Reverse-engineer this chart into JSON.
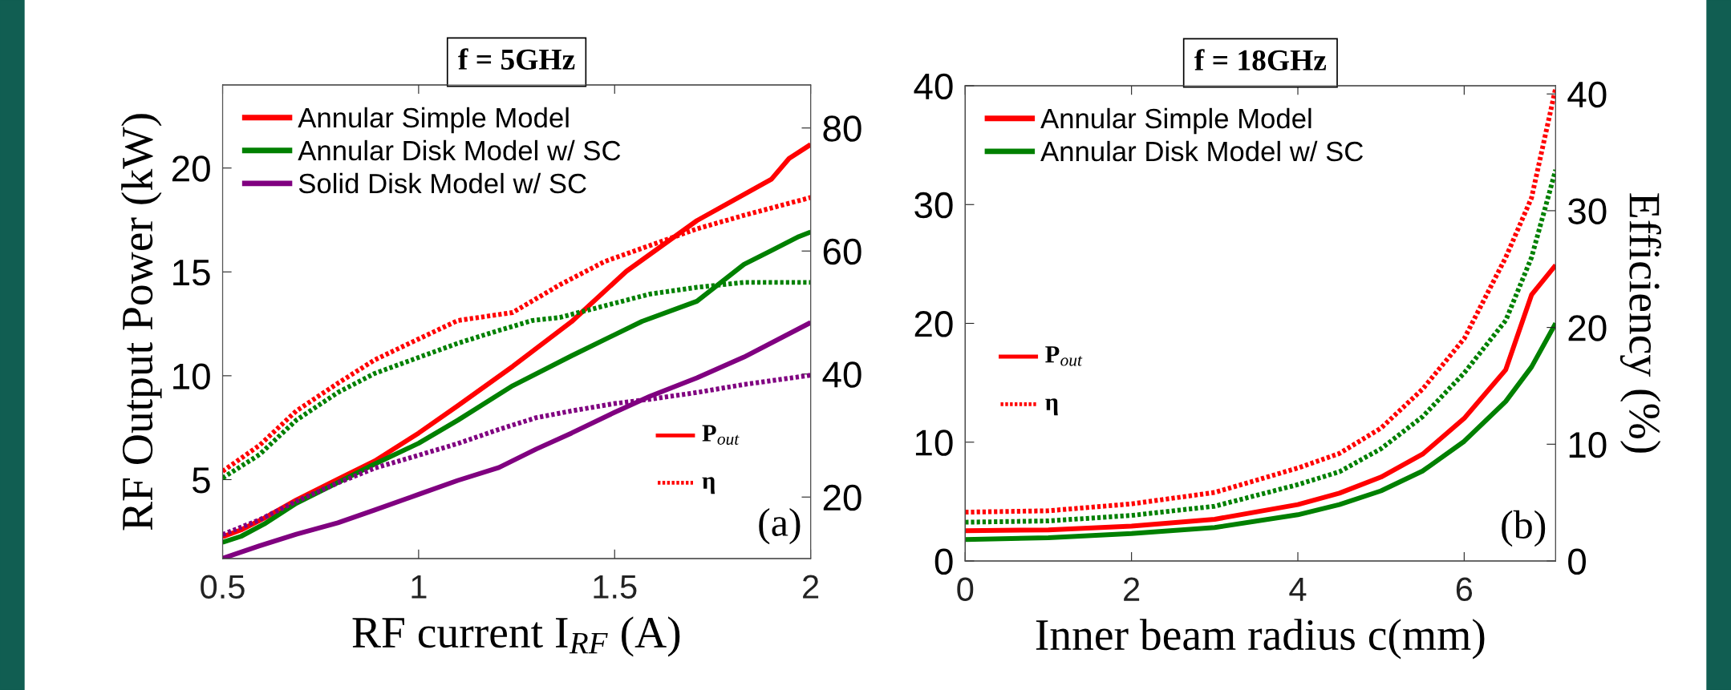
{
  "chart_data": [
    {
      "type": "line",
      "title": "f = 5GHz",
      "xlabel": "RF current I$_{RF}$ (A)",
      "ylabel": "RF Output Power (kW)",
      "xlim": [
        0.5,
        2
      ],
      "xticks": [
        0.5,
        1,
        1.5,
        2
      ],
      "ylim": [
        1.2,
        24
      ],
      "yticks": [
        5,
        10,
        15,
        20
      ],
      "y2lim": [
        10,
        87
      ],
      "y2ticks": [
        20,
        40,
        60,
        80
      ],
      "legend": "top left",
      "grid": false,
      "series": [
        {
          "name": "Annular Simple Model",
          "color": "#ff0000",
          "line_style": "solid",
          "x": [
            0.5,
            0.547,
            0.606,
            0.688,
            0.794,
            0.888,
            1.0,
            1.1,
            1.24,
            1.39,
            1.53,
            1.71,
            1.9,
            1.945,
            2.0
          ],
          "values": [
            2.25,
            2.58,
            3.14,
            4.02,
            5.02,
            5.9,
            7.24,
            8.56,
            10.45,
            12.6,
            15.03,
            17.47,
            19.46,
            20.46,
            21.13
          ]
        },
        {
          "name": "Annular Disk Model w/ SC",
          "color": "#008000",
          "line_style": "solid",
          "x": [
            0.5,
            0.547,
            0.606,
            0.688,
            0.794,
            0.888,
            1.0,
            1.1,
            1.24,
            1.39,
            1.57,
            1.71,
            1.83,
            1.9,
            1.97,
            2.0
          ],
          "values": [
            1.98,
            2.27,
            2.86,
            3.86,
            4.86,
            5.75,
            6.75,
            7.86,
            9.52,
            10.96,
            12.62,
            13.59,
            15.36,
            16.03,
            16.7,
            16.92
          ]
        },
        {
          "name": "Solid Disk Model w/ SC",
          "color": "#800080",
          "line_style": "solid",
          "x": [
            0.5,
            0.594,
            0.688,
            0.794,
            0.888,
            1.0,
            1.1,
            1.205,
            1.3,
            1.39,
            1.5,
            1.59,
            1.71,
            1.83,
            2.0
          ],
          "values": [
            1.21,
            1.81,
            2.37,
            2.92,
            3.54,
            4.29,
            4.96,
            5.58,
            6.47,
            7.24,
            8.24,
            9.01,
            9.9,
            10.9,
            12.56
          ]
        },
        {
          "color": "#ff0000",
          "line_style": "dotted",
          "axis": "y2",
          "x": [
            0.5,
            0.594,
            0.688,
            0.794,
            0.888,
            1.0,
            1.1,
            1.24,
            1.36,
            1.475,
            1.59,
            1.71,
            1.83,
            2.0
          ],
          "values": [
            24.2,
            28.4,
            34.0,
            38.5,
            42.3,
            45.7,
            48.7,
            50.0,
            54.5,
            58.3,
            60.9,
            63.6,
            65.8,
            68.7
          ]
        },
        {
          "color": "#008000",
          "line_style": "dotted",
          "axis": "y2",
          "x": [
            0.5,
            0.594,
            0.688,
            0.794,
            0.888,
            1.0,
            1.1,
            1.19,
            1.29,
            1.36,
            1.475,
            1.59,
            1.71,
            1.83,
            2.0
          ],
          "values": [
            23.1,
            26.9,
            32.5,
            37.0,
            40.1,
            42.7,
            45.0,
            46.8,
            48.7,
            49.2,
            51.1,
            53.0,
            54.1,
            54.9,
            54.9
          ]
        },
        {
          "color": "#800080",
          "line_style": "dotted",
          "axis": "y2",
          "x": [
            0.5,
            0.594,
            0.688,
            0.794,
            0.888,
            1.0,
            1.1,
            1.205,
            1.3,
            1.39,
            1.5,
            1.59,
            1.71,
            1.83,
            2.0
          ],
          "values": [
            13.9,
            16.3,
            19.3,
            22.3,
            24.7,
            26.8,
            28.7,
            31.0,
            32.9,
            34.0,
            35.2,
            35.9,
            37.0,
            38.3,
            39.8
          ]
        }
      ],
      "annotations": [
        "P$_{out}$",
        "η",
        "(a)"
      ]
    },
    {
      "type": "line",
      "title": "f = 18GHz",
      "xlabel": "Inner beam radius c(mm)",
      "y2label": "Efficiency (%)",
      "xlim": [
        0,
        7.1
      ],
      "xticks": [
        0,
        2,
        4,
        6
      ],
      "ylim": [
        0,
        40
      ],
      "yticks": [
        0,
        10,
        20,
        30,
        40
      ],
      "y2lim": [
        0,
        40.7
      ],
      "y2ticks": [
        0,
        10,
        20,
        30,
        40
      ],
      "legend": "top left",
      "grid": false,
      "series": [
        {
          "name": "Annular Simple Model",
          "color": "#ff0000",
          "line_style": "solid",
          "x": [
            0,
            1,
            2,
            3,
            4,
            4.5,
            5,
            5.5,
            6,
            6.5,
            6.81,
            7.1
          ],
          "values": [
            2.55,
            2.62,
            2.93,
            3.51,
            4.75,
            5.71,
            7.06,
            8.99,
            12.0,
            16.1,
            22.4,
            24.9
          ]
        },
        {
          "name": "Annular Disk Model w/ SC",
          "color": "#008000",
          "line_style": "solid",
          "x": [
            0,
            1,
            2,
            3,
            4,
            4.5,
            5,
            5.5,
            6,
            6.5,
            6.81,
            7.1
          ],
          "values": [
            1.81,
            1.96,
            2.31,
            2.82,
            3.89,
            4.75,
            5.9,
            7.57,
            10.07,
            13.43,
            16.33,
            20.0
          ]
        },
        {
          "color": "#ff0000",
          "line_style": "dotted",
          "axis": "y2",
          "x": [
            0,
            1,
            2,
            3,
            4,
            4.5,
            5,
            5.5,
            6,
            6.5,
            6.81,
            7.1
          ],
          "values": [
            4.18,
            4.3,
            4.89,
            5.87,
            7.96,
            9.21,
            11.38,
            14.72,
            19.04,
            26.0,
            31.1,
            40.5
          ]
        },
        {
          "color": "#008000",
          "line_style": "dotted",
          "axis": "y2",
          "x": [
            0,
            1,
            2,
            3,
            4,
            4.5,
            5,
            5.5,
            6,
            6.5,
            6.81,
            7.1
          ],
          "values": [
            3.32,
            3.43,
            3.9,
            4.69,
            6.54,
            7.64,
            9.61,
            12.36,
            16.1,
            20.6,
            26.0,
            33.5
          ]
        }
      ],
      "annotations": [
        "P$_{out}$",
        "η",
        "(b)"
      ]
    }
  ]
}
